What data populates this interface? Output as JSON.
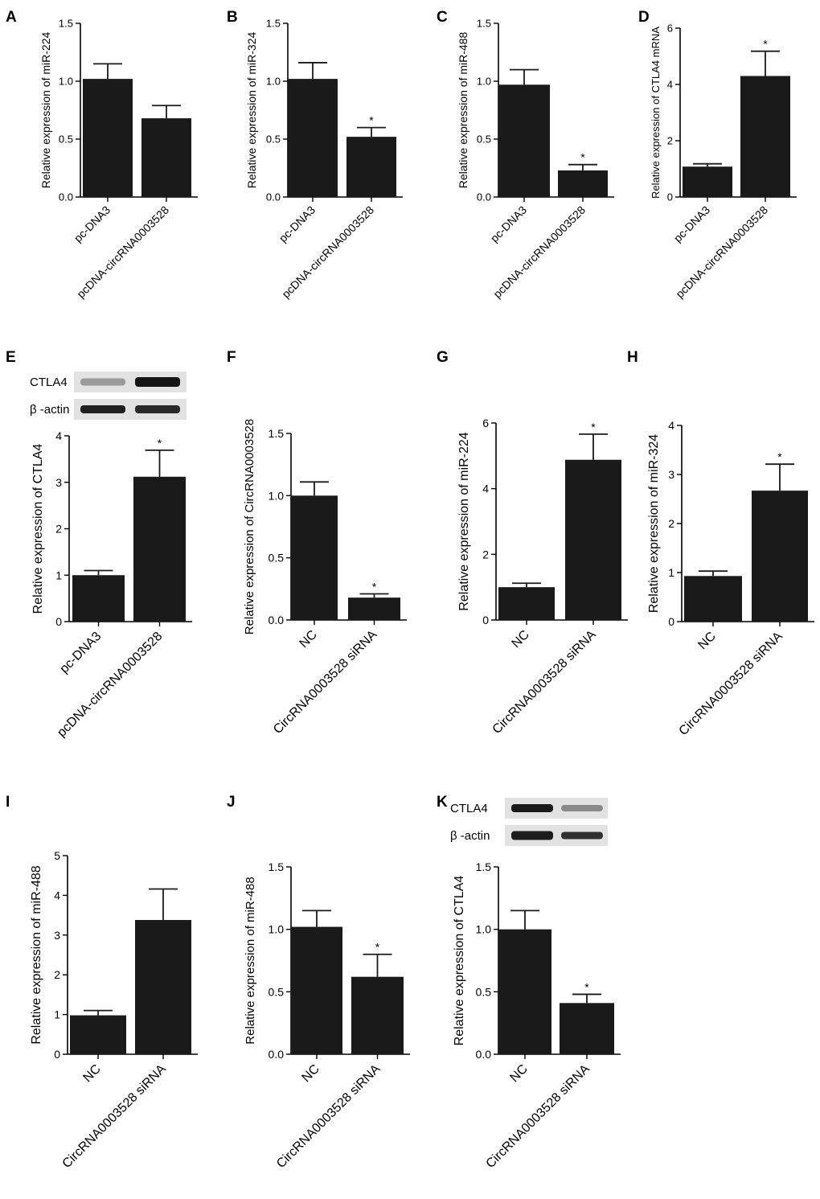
{
  "colors": {
    "bar": "#1a1a1a",
    "axis": "#000000",
    "blot_bg": "#e2e2e2"
  },
  "chart_data": [
    {
      "panel": "A",
      "type": "bar",
      "ylabel": "Relative expression of miR-224",
      "ylim": [
        0,
        1.5
      ],
      "yticks": [
        "0.0",
        "0.5",
        "1.0",
        "1.5"
      ],
      "categories": [
        "pc-DNA3",
        "pcDNA-circRNA0003528"
      ],
      "values": [
        1.02,
        0.68
      ],
      "errors": [
        0.13,
        0.11
      ],
      "significance": [
        "",
        ""
      ]
    },
    {
      "panel": "B",
      "type": "bar",
      "ylabel": "Relative expression of miR-324",
      "ylim": [
        0,
        1.5
      ],
      "yticks": [
        "0.0",
        "0.5",
        "1.0",
        "1.5"
      ],
      "categories": [
        "pc-DNA3",
        "pcDNA-circRNA0003528"
      ],
      "values": [
        1.02,
        0.52
      ],
      "errors": [
        0.14,
        0.08
      ],
      "significance": [
        "",
        "*"
      ]
    },
    {
      "panel": "C",
      "type": "bar",
      "ylabel": "Relative expression of miR-488",
      "ylim": [
        0,
        1.5
      ],
      "yticks": [
        "0.0",
        "0.5",
        "1.0",
        "1.5"
      ],
      "categories": [
        "pc-DNA3",
        "pcDNA-circRNA0003528"
      ],
      "values": [
        0.97,
        0.23
      ],
      "errors": [
        0.13,
        0.05
      ],
      "significance": [
        "",
        "*"
      ]
    },
    {
      "panel": "D",
      "type": "bar",
      "ylabel": "Relative expression of CTLA4 mRNA",
      "ylim": [
        0,
        6
      ],
      "yticks": [
        "0",
        "2",
        "4",
        "6"
      ],
      "categories": [
        "pc-DNA3",
        "pcDNA-circRNA0003528"
      ],
      "values": [
        1.08,
        4.3
      ],
      "errors": [
        0.1,
        0.88
      ],
      "significance": [
        "",
        "*"
      ]
    },
    {
      "panel": "E",
      "type": "bar",
      "ylabel": "Relative expression of CTLA4",
      "ylim": [
        0,
        4
      ],
      "yticks": [
        "0",
        "1",
        "2",
        "3",
        "4"
      ],
      "categories": [
        "pc-DNA3",
        "pcDNA-circRNA0003528"
      ],
      "values": [
        1.0,
        3.12
      ],
      "errors": [
        0.1,
        0.57
      ],
      "significance": [
        "",
        "*"
      ],
      "blot": {
        "labels": [
          "CTLA4",
          "β -actin"
        ]
      }
    },
    {
      "panel": "F",
      "type": "bar",
      "ylabel": "Relative expression of CircRNA0003528",
      "ylim": [
        0,
        1.5
      ],
      "yticks": [
        "0.0",
        "0.5",
        "1.0",
        "1.5"
      ],
      "categories": [
        "NC",
        "CircRNA0003528 siRNA"
      ],
      "values": [
        1.0,
        0.18
      ],
      "errors": [
        0.11,
        0.03
      ],
      "significance": [
        "",
        "*"
      ]
    },
    {
      "panel": "G",
      "type": "bar",
      "ylabel": "Relative expression of miR-224",
      "ylim": [
        0,
        6
      ],
      "yticks": [
        "0",
        "2",
        "4",
        "6"
      ],
      "categories": [
        "NC",
        "CircRNA0003528 siRNA"
      ],
      "values": [
        1.0,
        4.88
      ],
      "errors": [
        0.12,
        0.78
      ],
      "significance": [
        "",
        "*"
      ]
    },
    {
      "panel": "H",
      "type": "bar",
      "ylabel": "Relative expression of miR-324",
      "ylim": [
        0,
        4
      ],
      "yticks": [
        "0",
        "1",
        "2",
        "3",
        "4"
      ],
      "categories": [
        "NC",
        "CircRNA0003528 siRNA"
      ],
      "values": [
        0.93,
        2.67
      ],
      "errors": [
        0.1,
        0.54
      ],
      "significance": [
        "",
        "*"
      ]
    },
    {
      "panel": "I",
      "type": "bar",
      "ylabel": "Relative expression of miR-488",
      "ylim": [
        0,
        5
      ],
      "yticks": [
        "0",
        "1",
        "2",
        "3",
        "4",
        "5"
      ],
      "categories": [
        "NC",
        "CircRNA0003528 siRNA"
      ],
      "values": [
        0.98,
        3.38
      ],
      "errors": [
        0.12,
        0.78
      ],
      "significance": [
        "",
        ""
      ]
    },
    {
      "panel": "J",
      "type": "bar",
      "ylabel": "Relative expression of miR-488",
      "ylim": [
        0,
        1.5
      ],
      "yticks": [
        "0.0",
        "0.5",
        "1.0",
        "1.5"
      ],
      "categories": [
        "NC",
        "CircRNA0003528 siRNA"
      ],
      "values": [
        1.02,
        0.62
      ],
      "errors": [
        0.13,
        0.18
      ],
      "significance": [
        "",
        "*"
      ]
    },
    {
      "panel": "K",
      "type": "bar",
      "ylabel": "Relative expression of CTLA4",
      "ylim": [
        0,
        1.5
      ],
      "yticks": [
        "0.0",
        "0.5",
        "1.0",
        "1.5"
      ],
      "categories": [
        "NC",
        "CircRNA0003528 siRNA"
      ],
      "values": [
        1.0,
        0.41
      ],
      "errors": [
        0.15,
        0.07
      ],
      "significance": [
        "",
        "*"
      ],
      "blot": {
        "labels": [
          "CTLA4",
          "β -actin"
        ]
      }
    }
  ]
}
